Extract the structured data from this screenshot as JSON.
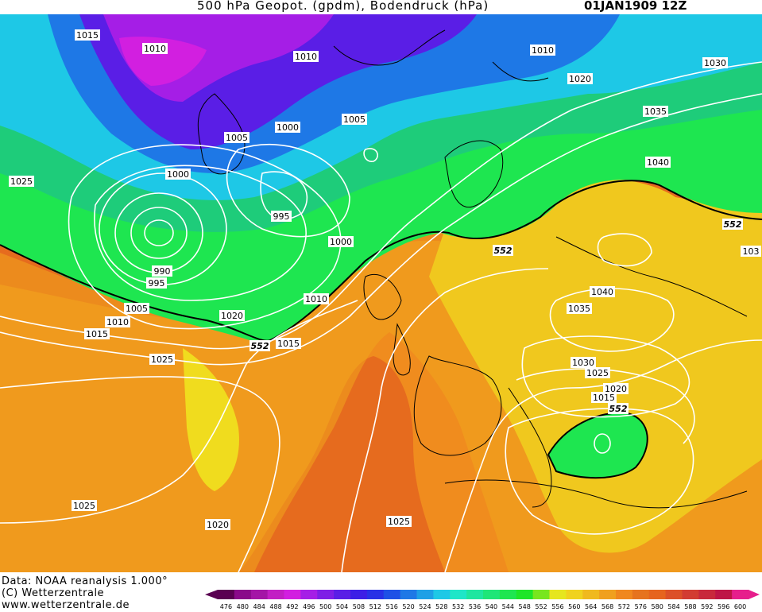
{
  "header": {
    "title": "500 hPa Geopot. (gpdm), Bodendruck (hPa)",
    "datetime": "01JAN1909 12Z"
  },
  "footer": {
    "source": "Data: NOAA reanalysis 1.000°",
    "copyright": "(C) Wetterzentrale",
    "url": "www.wetterzentrale.de"
  },
  "legend": {
    "values": [
      "476",
      "480",
      "484",
      "488",
      "492",
      "496",
      "500",
      "504",
      "508",
      "512",
      "516",
      "520",
      "524",
      "528",
      "532",
      "536",
      "540",
      "544",
      "548",
      "552",
      "556",
      "560",
      "564",
      "568",
      "572",
      "576",
      "580",
      "584",
      "588",
      "592",
      "596",
      "600"
    ],
    "colors": [
      "#5a0052",
      "#8a0a8a",
      "#a415a6",
      "#c21fc4",
      "#d21fe0",
      "#a51ee6",
      "#7e1ee6",
      "#5a1ee6",
      "#3c1ee6",
      "#2830e6",
      "#1e50e6",
      "#1e78e6",
      "#1ea0e6",
      "#1ec8e6",
      "#1ee6c8",
      "#1ee6a0",
      "#1ee678",
      "#1ee650",
      "#1ee628",
      "#78e61e",
      "#e6e61e",
      "#f0d21e",
      "#f0b91e",
      "#f0a01e",
      "#f0871e",
      "#e6731e",
      "#e6641e",
      "#dc5028",
      "#d23c32",
      "#c8283c",
      "#be1446",
      "#e61e8c"
    ]
  },
  "isobar_labels": [
    {
      "text": "1015"
    },
    {
      "text": "1010"
    },
    {
      "text": "1010"
    },
    {
      "text": "1005"
    },
    {
      "text": "1000"
    },
    {
      "text": "1005"
    },
    {
      "text": "1025"
    },
    {
      "text": "1000"
    },
    {
      "text": "995"
    },
    {
      "text": "1000"
    },
    {
      "text": "990"
    },
    {
      "text": "995"
    },
    {
      "text": "1005"
    },
    {
      "text": "1010"
    },
    {
      "text": "1015"
    },
    {
      "text": "1020"
    },
    {
      "text": "1015"
    },
    {
      "text": "1010"
    },
    {
      "text": "1025"
    },
    {
      "text": "1010"
    },
    {
      "text": "1020"
    },
    {
      "text": "1030"
    },
    {
      "text": "1035"
    },
    {
      "text": "1040"
    },
    {
      "text": "1040"
    },
    {
      "text": "1035"
    },
    {
      "text": "1030"
    },
    {
      "text": "1025"
    },
    {
      "text": "1020"
    },
    {
      "text": "1015"
    },
    {
      "text": "1025"
    },
    {
      "text": "1020"
    },
    {
      "text": "1025"
    },
    {
      "text": "103"
    }
  ],
  "geopot_labels": [
    {
      "text": "552"
    },
    {
      "text": "552"
    },
    {
      "text": "552"
    },
    {
      "text": "552"
    }
  ]
}
